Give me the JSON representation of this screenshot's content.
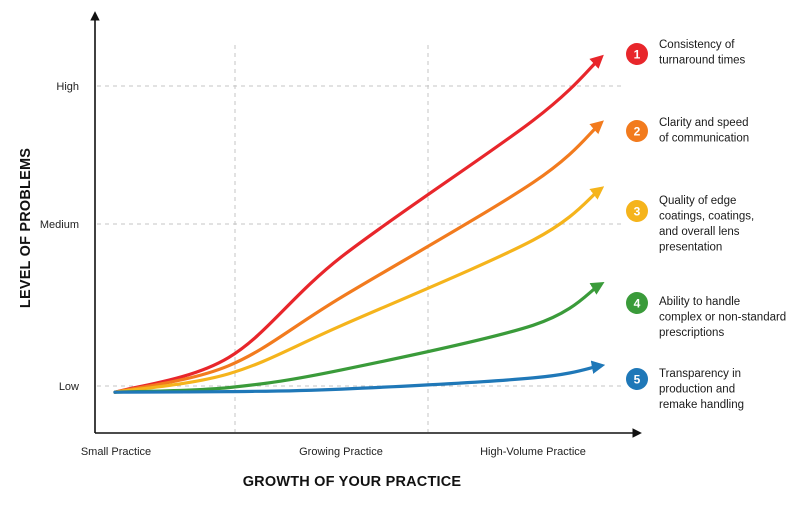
{
  "chart_data": {
    "type": "line",
    "title": "",
    "xlabel": "GROWTH OF YOUR PRACTICE",
    "ylabel": "LEVEL OF PROBLEMS",
    "x_categories": [
      "Small Practice",
      "Growing Practice",
      "High-Volume Practice"
    ],
    "y_categories": [
      "Low",
      "Medium",
      "High"
    ],
    "grid": true,
    "legend_placement": "right",
    "series": [
      {
        "number": "1",
        "name": "Consistency of turnaround times",
        "label_lines": [
          "Consistency of",
          "turnaround times"
        ],
        "color": "#e8262b",
        "points": [
          [
            0,
            0.8
          ],
          [
            0.5,
            1.35
          ],
          [
            1,
            2.6
          ],
          [
            2,
            4.5
          ],
          [
            2.35,
            5.4
          ]
        ]
      },
      {
        "number": "2",
        "name": "Clarity and speed of communication",
        "label_lines": [
          "Clarity and speed",
          "of communication"
        ],
        "color": "#f27b1e",
        "points": [
          [
            0,
            0.8
          ],
          [
            0.5,
            1.25
          ],
          [
            1,
            2.1
          ],
          [
            2,
            3.6
          ],
          [
            2.35,
            4.45
          ]
        ]
      },
      {
        "number": "3",
        "name": "Quality of edge coatings, coatings, and overall lens presentation",
        "label_lines": [
          "Quality of edge",
          "coatings, coatings,",
          "and overall lens",
          "presentation"
        ],
        "color": "#f5b41c",
        "points": [
          [
            0,
            0.8
          ],
          [
            0.5,
            1.15
          ],
          [
            1,
            1.75
          ],
          [
            2,
            2.8
          ],
          [
            2.35,
            3.5
          ]
        ]
      },
      {
        "number": "4",
        "name": "Ability to handle complex or non-standard prescriptions",
        "label_lines": [
          "Ability to handle",
          "complex or non-standard",
          "prescriptions"
        ],
        "color": "#3a9b3a",
        "points": [
          [
            0,
            0.8
          ],
          [
            0.5,
            0.95
          ],
          [
            1,
            1.2
          ],
          [
            2,
            1.75
          ],
          [
            2.35,
            2.25
          ]
        ]
      },
      {
        "number": "5",
        "name": "Transparency in production and remake handling",
        "label_lines": [
          "Transparency in",
          "production and",
          "remake handling"
        ],
        "color": "#1f78b8",
        "points": [
          [
            0,
            0.8
          ],
          [
            0.5,
            0.82
          ],
          [
            1,
            0.9
          ],
          [
            2,
            1.1
          ],
          [
            2.35,
            1.25
          ]
        ]
      }
    ]
  }
}
